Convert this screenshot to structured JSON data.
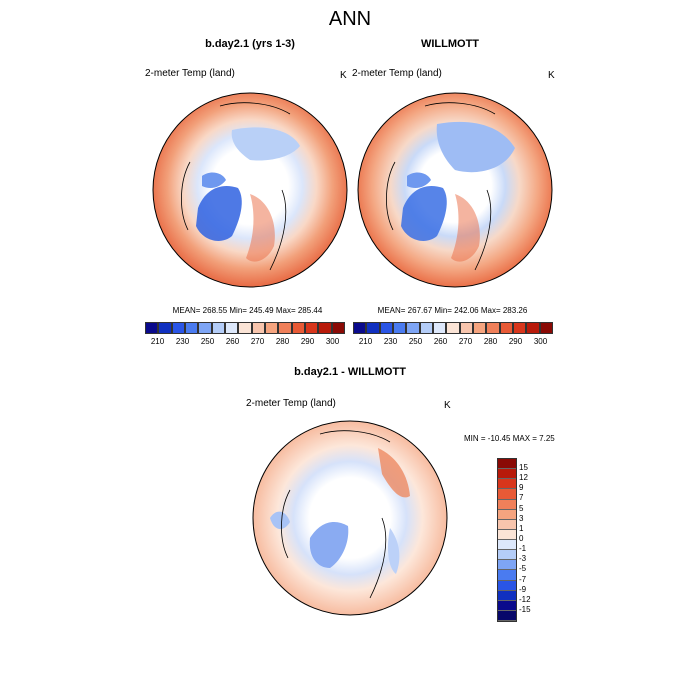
{
  "figure": {
    "title": "ANN",
    "panels": [
      {
        "title": "b.day2.1 (yrs 1-3)",
        "variable": "2-meter Temp (land)",
        "units": "K",
        "stats": "MEAN= 268.55  Min= 245.49  Max= 285.44"
      },
      {
        "title": "WILLMOTT",
        "variable": "2-meter Temp (land)",
        "units": "K",
        "stats": "MEAN= 267.67  Min= 242.06  Max= 283.26"
      },
      {
        "title": "b.day2.1 - WILLMOTT",
        "variable": "2-meter Temp (land)",
        "units": "K",
        "stats": "MIN = -10.45 MAX =   7.25"
      }
    ],
    "abs_colorbar": {
      "labels": [
        "210",
        "230",
        "250",
        "260",
        "270",
        "280",
        "290",
        "300"
      ],
      "colors": [
        "#0a0a8c",
        "#1030c0",
        "#2a55e6",
        "#4a7bf0",
        "#7ea5f5",
        "#b4cdf8",
        "#dde8fb",
        "#fbe4d6",
        "#f8c5ad",
        "#f5a47f",
        "#f0805a",
        "#e85a36",
        "#d8361c",
        "#b81a0a",
        "#8a0a05"
      ]
    },
    "diff_colorbar": {
      "labels": [
        "15",
        "12",
        "9",
        "7",
        "5",
        "3",
        "1",
        "0",
        "-1",
        "-3",
        "-5",
        "-7",
        "-9",
        "-12",
        "-15"
      ],
      "colors": [
        "#8a0a05",
        "#b81a0a",
        "#d8361c",
        "#e85a36",
        "#f0805a",
        "#f5a47f",
        "#f8c5ad",
        "#fbe4d6",
        "#dde8fb",
        "#b4cdf8",
        "#7ea5f5",
        "#4a7bf0",
        "#2a55e6",
        "#1030c0",
        "#0a0a8c",
        "#07076a"
      ]
    }
  }
}
